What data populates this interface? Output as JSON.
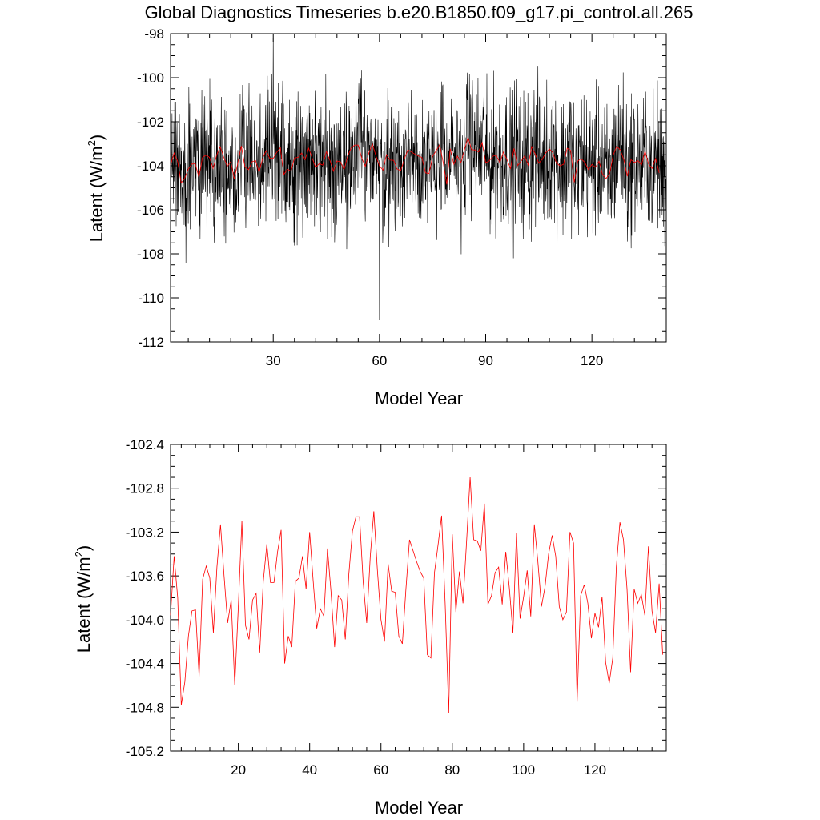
{
  "title": "Global Diagnostics Timeseries b.e20.B1850.f09_g17.pi_control.all.265",
  "chart_data": [
    {
      "type": "line",
      "xlabel": "Model Year",
      "ylabel": "Latent (W/m",
      "ylabel_sup": "2",
      "ylabel_close": ")",
      "xlim": [
        1,
        141
      ],
      "ylim": [
        -112,
        -98
      ],
      "xticks": [
        30,
        60,
        90,
        120
      ],
      "xtick_labels": [
        "30",
        "60",
        "90",
        "120"
      ],
      "yticks": [
        -98,
        -100,
        -102,
        -104,
        -106,
        -108,
        -110,
        -112
      ],
      "ytick_labels": [
        "-98",
        "-100",
        "-102",
        "-104",
        "-106",
        "-108",
        "-110",
        "-112"
      ],
      "series": [
        {
          "color": "#000000",
          "resolution": "monthly",
          "x_start": 1,
          "x_step": 0.0833333,
          "count": 1680,
          "mean": -104.0,
          "envelope": [
            -110.0,
            -98.3
          ],
          "extremes": [
            {
              "x": 60,
              "y": -111.0
            },
            {
              "x": 30,
              "y": -98.2
            },
            {
              "x": 85,
              "y": -98.5
            }
          ]
        },
        {
          "color": "#ff0000",
          "resolution": "annual",
          "x_start": 1,
          "values_ref": "chart_data.1.series.0.values"
        }
      ]
    },
    {
      "type": "line",
      "xlabel": "Model Year",
      "ylabel": "Latent (W/m",
      "ylabel_sup": "2",
      "ylabel_close": ")",
      "xlim": [
        1,
        140
      ],
      "ylim": [
        -105.2,
        -102.4
      ],
      "xticks": [
        20,
        40,
        60,
        80,
        100,
        120
      ],
      "xtick_labels": [
        "20",
        "40",
        "60",
        "80",
        "100",
        "120"
      ],
      "yticks": [
        -102.4,
        -102.8,
        -103.2,
        -103.6,
        -104.0,
        -104.4,
        -104.8,
        -105.2
      ],
      "ytick_labels": [
        "-102.4",
        "-102.8",
        "-103.2",
        "-103.6",
        "-104.0",
        "-104.4",
        "-104.8",
        "-105.2"
      ],
      "series": [
        {
          "color": "#ff0000",
          "x_start": 1,
          "values": [
            -103.96,
            -103.42,
            -103.8,
            -104.78,
            -104.57,
            -104.15,
            -103.92,
            -103.91,
            -104.52,
            -103.63,
            -103.51,
            -103.62,
            -104.12,
            -103.52,
            -103.13,
            -103.6,
            -104.03,
            -103.82,
            -104.6,
            -103.88,
            -103.1,
            -104.05,
            -104.18,
            -103.82,
            -103.76,
            -104.3,
            -103.65,
            -103.31,
            -103.66,
            -103.66,
            -103.38,
            -103.18,
            -104.4,
            -104.15,
            -104.25,
            -103.65,
            -103.62,
            -103.42,
            -103.72,
            -103.2,
            -103.65,
            -104.08,
            -103.9,
            -103.97,
            -103.35,
            -103.75,
            -104.25,
            -103.78,
            -103.82,
            -104.18,
            -103.58,
            -103.19,
            -103.06,
            -103.06,
            -103.65,
            -104.03,
            -103.42,
            -103.01,
            -103.55,
            -104.0,
            -104.2,
            -103.49,
            -103.74,
            -103.75,
            -104.15,
            -104.22,
            -103.72,
            -103.27,
            -103.37,
            -103.47,
            -103.56,
            -103.62,
            -104.32,
            -104.35,
            -103.57,
            -103.32,
            -103.05,
            -103.85,
            -104.85,
            -103.22,
            -103.93,
            -103.56,
            -103.85,
            -103.29,
            -102.7,
            -103.27,
            -103.28,
            -103.37,
            -102.94,
            -103.86,
            -103.78,
            -103.57,
            -103.52,
            -103.86,
            -103.38,
            -103.71,
            -104.12,
            -103.21,
            -103.99,
            -103.79,
            -103.55,
            -103.97,
            -103.13,
            -103.47,
            -103.88,
            -103.7,
            -103.4,
            -103.23,
            -103.42,
            -103.88,
            -104.0,
            -103.93,
            -103.2,
            -103.3,
            -104.75,
            -103.78,
            -103.68,
            -103.85,
            -104.17,
            -103.94,
            -104.07,
            -103.79,
            -104.39,
            -104.58,
            -104.35,
            -103.52,
            -103.11,
            -103.27,
            -103.72,
            -104.48,
            -103.72,
            -103.85,
            -103.77,
            -103.96,
            -103.33,
            -103.92,
            -104.12,
            -103.67,
            -104.32
          ]
        }
      ]
    }
  ]
}
